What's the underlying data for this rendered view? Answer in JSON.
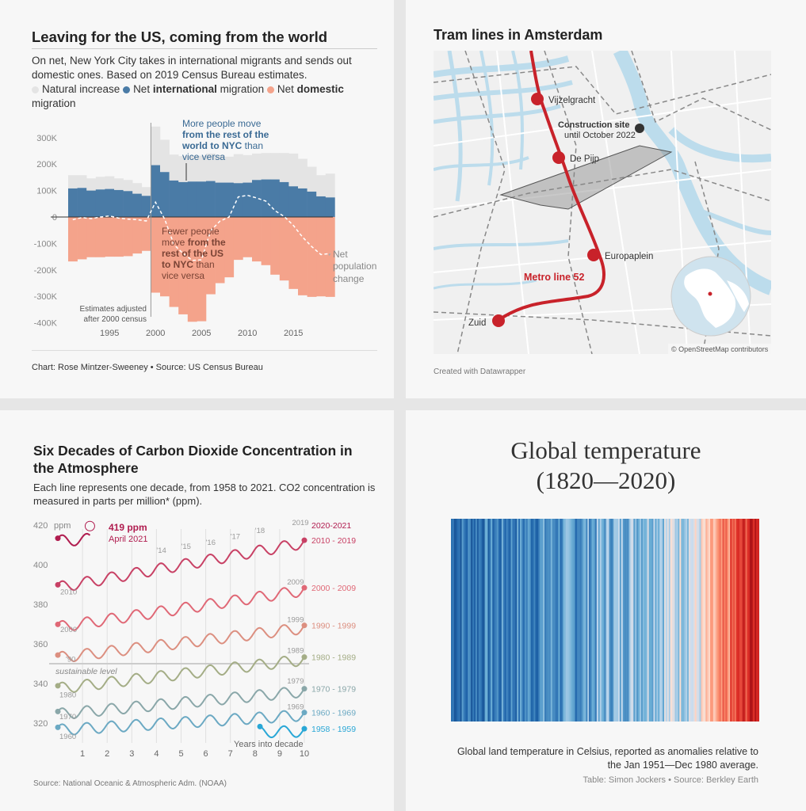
{
  "migration": {
    "title": "Leaving for the US, coming from the world",
    "description": "On net, New York City takes in international migrants and sends out domestic ones. Based on 2019 Census Bureau estimates.",
    "legend": [
      {
        "prefix": "",
        "bold": "",
        "suffix": "Natural increase",
        "color": "#e4e4e4"
      },
      {
        "prefix": "Net ",
        "bold": "international",
        "suffix": " migration",
        "color": "#4a7ba6"
      },
      {
        "prefix": "Net ",
        "bold": "domestic",
        "suffix": " migration",
        "color": "#f4a38b"
      }
    ],
    "annotation_intl_1": "More people move",
    "annotation_intl_2": "from the rest of the",
    "annotation_intl_3": "world to NYC",
    "annotation_intl_4": " than",
    "annotation_intl_5": "vice versa",
    "annotation_dom_1": "Fewer people",
    "annotation_dom_2": "move ",
    "annotation_dom_3": "from the",
    "annotation_dom_4": "rest of the US",
    "annotation_dom_5": "to NYC",
    "annotation_dom_6": " than",
    "annotation_dom_7": "vice versa",
    "net_label_1": "Net",
    "net_label_2": "population",
    "net_label_3": "change",
    "estimates_note_1": "Estimates adjusted",
    "estimates_note_2": "after 2000 census",
    "footer": "Chart: Rose Mintzer-Sweeney • Source: US Census Bureau"
  },
  "amsterdam": {
    "title": "Tram lines in Amsterdam",
    "stations": [
      "Vijzelgracht",
      "De Pijp",
      "Europaplein",
      "Zuid"
    ],
    "construction_title": "Construction site",
    "construction_sub": "until October 2022",
    "metro_label": "Metro line 52",
    "attribution": "© OpenStreetMap contributors",
    "footer": "Created with Datawrapper",
    "colors": {
      "metro": "#c8222a",
      "water": "#bcdcec",
      "land": "#f1f1f1"
    }
  },
  "co2": {
    "title_1": "Six Decades of Carbon Dioxide Concentration in",
    "title_2": "the Atmosphere",
    "description_1": "Each line represents one decade, from 1958 to 2021. CO2 concentration is",
    "description_2": "measured in parts per million* (ppm).",
    "callout_value": "419 ppm",
    "callout_date": "April 2021",
    "unit": "ppm",
    "sustainable_label": "sustainable level",
    "xlabel": "Years into decade",
    "source": "Source: National Oceanic & Atmospheric Adm. (NOAA)"
  },
  "stripes": {
    "title_1": "Global temperature",
    "title_2": "(1820—2020)",
    "caption_1": "Global land temperature in Celsius, reported as anomalies relative to",
    "caption_2": "the Jan 1951—Dec 1980 average.",
    "source": "Table: Simon Jockers • Source: Berkley Earth"
  },
  "chart_data": [
    {
      "type": "bar",
      "title": "Leaving for the US, coming from the world",
      "ylim": [
        -400000,
        350000
      ],
      "yticks": [
        "300K",
        "200K",
        "100K",
        "0",
        "-100K",
        "-200K",
        "-300K",
        "-400K"
      ],
      "xticks": [
        "1995",
        "2000",
        "2005",
        "2010",
        "2015"
      ],
      "categories": [
        1991,
        1992,
        1993,
        1994,
        1995,
        1996,
        1997,
        1998,
        1999,
        2000,
        2001,
        2002,
        2003,
        2004,
        2005,
        2006,
        2007,
        2008,
        2009,
        2010,
        2011,
        2012,
        2013,
        2014,
        2015,
        2016,
        2017,
        2018,
        2019
      ],
      "series": [
        {
          "name": "Natural increase",
          "values": [
            50000,
            48000,
            46000,
            48000,
            48000,
            44000,
            42000,
            40000,
            33000,
            146000,
            122000,
            98000,
            98000,
            98000,
            98000,
            104000,
            104000,
            98000,
            110000,
            104000,
            100000,
            100000,
            100000,
            110000,
            124000,
            112000,
            94000,
            80000,
            90000
          ]
        },
        {
          "name": "Net international migration",
          "values": [
            108000,
            110000,
            100000,
            104000,
            106000,
            102000,
            98000,
            88000,
            80000,
            196000,
            170000,
            138000,
            132000,
            134000,
            134000,
            136000,
            130000,
            130000,
            128000,
            130000,
            140000,
            142000,
            142000,
            132000,
            116000,
            108000,
            96000,
            78000,
            74000
          ]
        },
        {
          "name": "Net domestic migration",
          "values": [
            -168000,
            -160000,
            -152000,
            -152000,
            -150000,
            -150000,
            -148000,
            -138000,
            -128000,
            -286000,
            -300000,
            -340000,
            -368000,
            -396000,
            -394000,
            -292000,
            -250000,
            -228000,
            -162000,
            -152000,
            -168000,
            -182000,
            -218000,
            -240000,
            -272000,
            -296000,
            -302000,
            -300000,
            -302000
          ]
        },
        {
          "name": "Net population change",
          "values": [
            -10000,
            -2000,
            -6000,
            0,
            4000,
            -4000,
            -8000,
            -10000,
            -15000,
            56000,
            -8000,
            -104000,
            -138000,
            -164000,
            -162000,
            -52000,
            -16000,
            0,
            76000,
            82000,
            72000,
            60000,
            24000,
            2000,
            -32000,
            -76000,
            -112000,
            -142000,
            -138000
          ]
        }
      ]
    },
    {
      "type": "line",
      "title": "Six Decades of Carbon Dioxide Concentration in the Atmosphere",
      "xlabel": "Years into decade",
      "ylabel": "ppm",
      "xlim": [
        0,
        10
      ],
      "ylim": [
        310,
        420
      ],
      "sustainable_level": 350,
      "series": [
        {
          "name": "1958 - 1959",
          "start": 315.5,
          "end": 315.8,
          "x0": 8.2,
          "color": "#29a7d6"
        },
        {
          "name": "1960 - 1969",
          "start": 316.5,
          "end": 324.0,
          "x0": 0,
          "color": "#6ba9c3"
        },
        {
          "name": "1970 - 1979",
          "start": 324.5,
          "end": 336.0,
          "x0": 0,
          "color": "#8aa7a9"
        },
        {
          "name": "1980 - 1989",
          "start": 337.5,
          "end": 352.0,
          "x0": 0,
          "color": "#a4ad86"
        },
        {
          "name": "1990 - 1999",
          "start": 353.0,
          "end": 368.0,
          "x0": 0,
          "color": "#dc8f80"
        },
        {
          "name": "2000 - 2009",
          "start": 368.5,
          "end": 387.0,
          "x0": 0,
          "color": "#e06876"
        },
        {
          "name": "2010 - 2019",
          "start": 388.5,
          "end": 411.0,
          "x0": 0,
          "color": "#c84165"
        },
        {
          "name": "2020-2021",
          "start": 412.0,
          "end": 419.0,
          "x0": 0,
          "color": "#b01c4f"
        }
      ],
      "year_tags": [
        "1960",
        "1970",
        "1980",
        "'90",
        "2000",
        "2010",
        "'14",
        "'15",
        "'16",
        "'17",
        "'18",
        "2019",
        "1969",
        "1979",
        "1989",
        "1999",
        "2009"
      ]
    },
    {
      "type": "heatmap",
      "title": "Global temperature (1820—2020)",
      "x": "year 1820–2020",
      "values_description": "anomaly vs 1951–1980 average"
    }
  ]
}
